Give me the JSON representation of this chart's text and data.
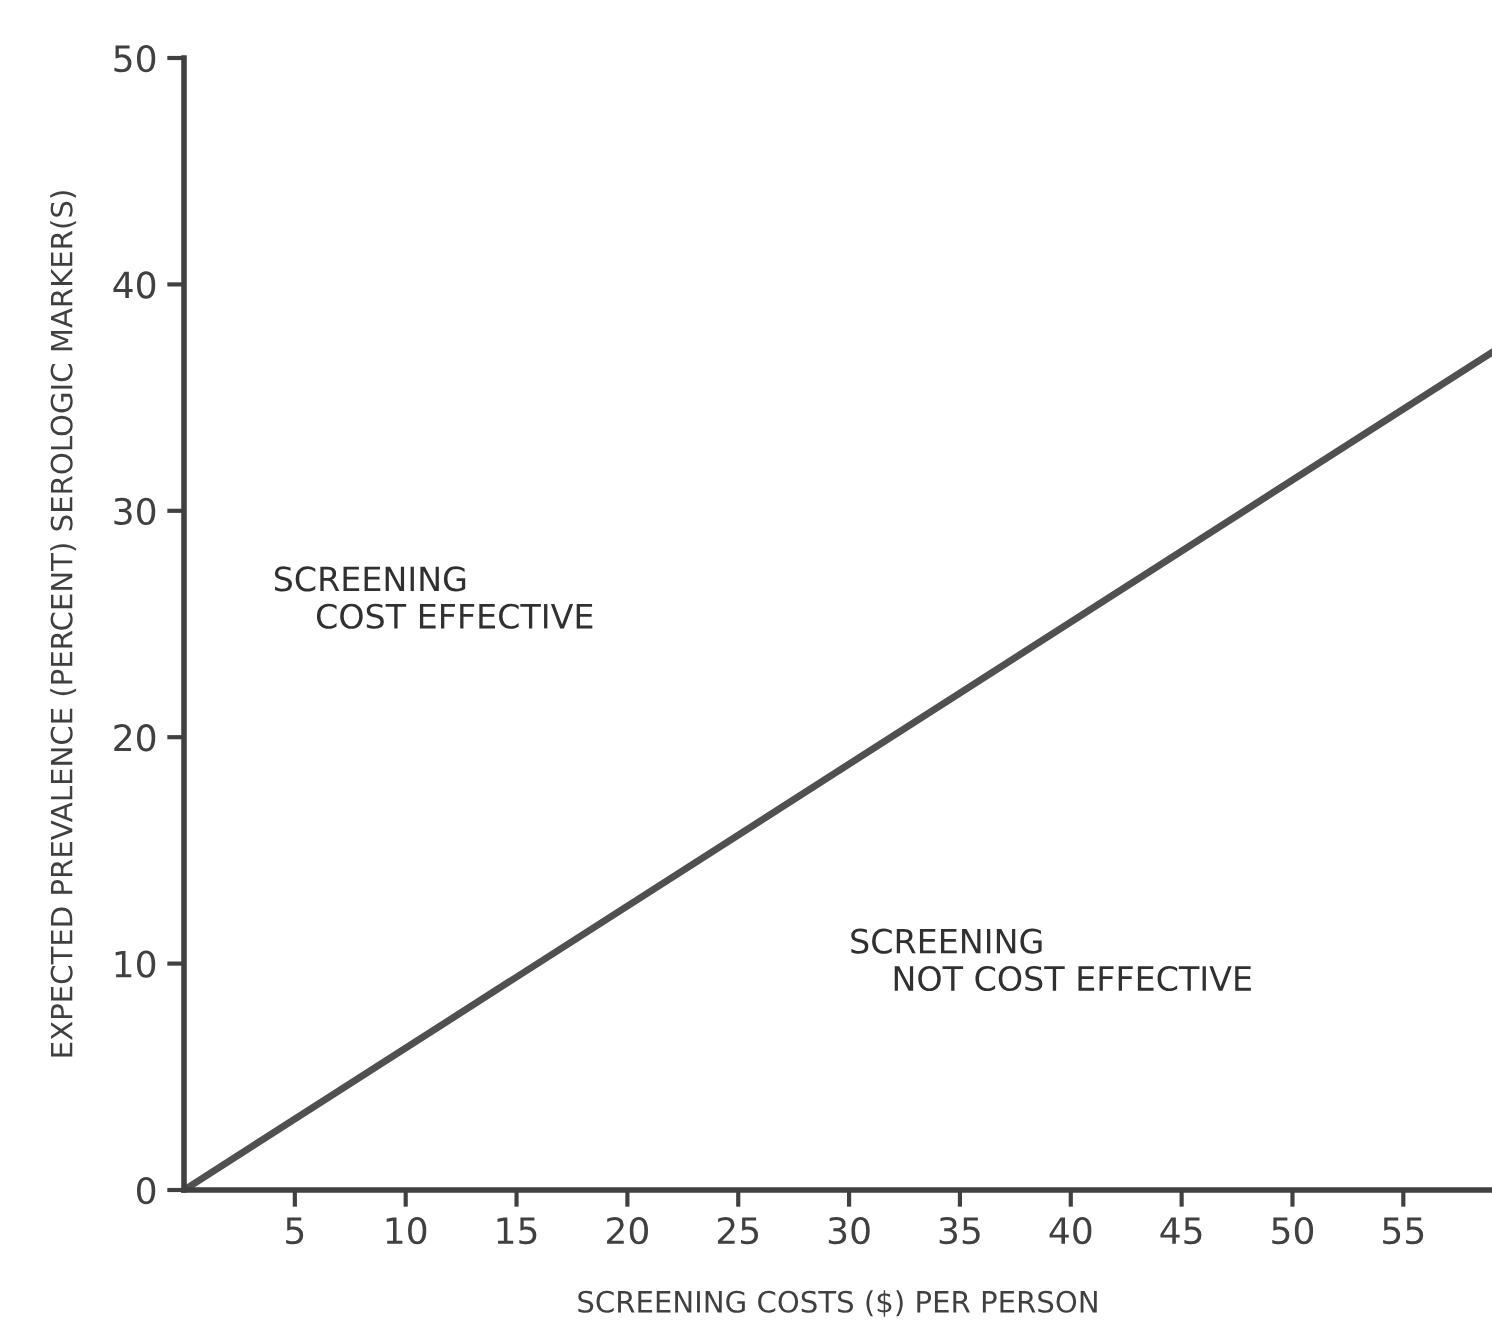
{
  "chart_data": {
    "type": "line",
    "xlabel": "SCREENING COSTS ($) PER PERSON",
    "ylabel": "EXPECTED PREVALENCE (PERCENT) SEROLOGIC MARKER(S)",
    "series": [
      {
        "color": "#505050",
        "x": [
          0,
          59
        ],
        "values": [
          0,
          37
        ]
      }
    ],
    "xlim": [
      0,
      59
    ],
    "xticks": [
      5,
      10,
      15,
      20,
      25,
      30,
      35,
      40,
      45,
      50,
      55
    ],
    "ylim": [
      0,
      50
    ],
    "yticks": [
      0,
      10,
      20,
      30,
      40,
      50
    ],
    "annotations": [
      "SCREENING\n    COST EFFECTIVE",
      "SCREENING\n    NOT COST EFFECTIVE"
    ],
    "grid": false,
    "marker": "none",
    "line_style": "solid"
  }
}
